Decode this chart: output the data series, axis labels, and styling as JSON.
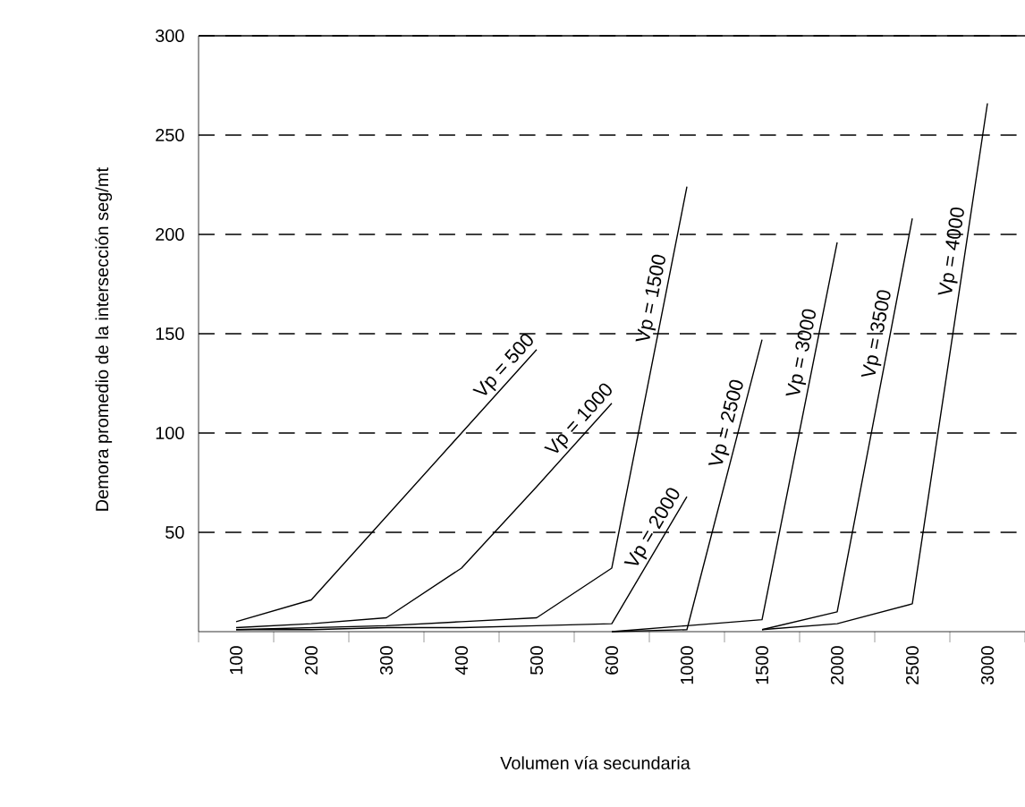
{
  "chart_data": {
    "type": "line",
    "xlabel": "Volumen vía secundaria",
    "ylabel": "Demora promedio de la intersección seg/mt",
    "categories": [
      "100",
      "200",
      "300",
      "400",
      "500",
      "600",
      "1000",
      "1500",
      "2000",
      "2500",
      "3000"
    ],
    "ylim": [
      0,
      300
    ],
    "yticks": [
      50,
      100,
      150,
      200,
      250,
      300
    ],
    "grid": "y",
    "marker": "none",
    "line_style": "solid",
    "series": [
      {
        "name": "Vp = 500",
        "color": "#000000",
        "values": [
          5,
          16,
          58,
          100,
          142,
          null,
          null,
          null,
          null,
          null,
          null
        ]
      },
      {
        "name": "Vp = 1000",
        "color": "#000000",
        "values": [
          2,
          4,
          7,
          32,
          73,
          115,
          null,
          null,
          null,
          null,
          null
        ]
      },
      {
        "name": "Vp = 1500",
        "color": "#000000",
        "values": [
          1,
          2,
          3,
          5,
          7,
          32,
          224,
          null,
          null,
          null,
          null
        ]
      },
      {
        "name": "Vp = 2000",
        "color": "#000000",
        "values": [
          1,
          1,
          2,
          2,
          3,
          4,
          68,
          null,
          null,
          null,
          null
        ]
      },
      {
        "name": "Vp = 2500",
        "color": "#000000",
        "values": [
          null,
          null,
          null,
          null,
          null,
          0,
          1,
          147,
          null,
          null,
          null
        ]
      },
      {
        "name": "Vp = 3000",
        "color": "#000000",
        "values": [
          null,
          null,
          null,
          null,
          null,
          0,
          3,
          6,
          196,
          null,
          null
        ]
      },
      {
        "name": "Vp = 3500",
        "color": "#000000",
        "values": [
          null,
          null,
          null,
          null,
          null,
          null,
          null,
          1,
          10,
          208,
          null
        ]
      },
      {
        "name": "Vp = 4000",
        "color": "#000000",
        "values": [
          null,
          null,
          null,
          null,
          null,
          null,
          null,
          1,
          4,
          14,
          266
        ]
      }
    ]
  }
}
